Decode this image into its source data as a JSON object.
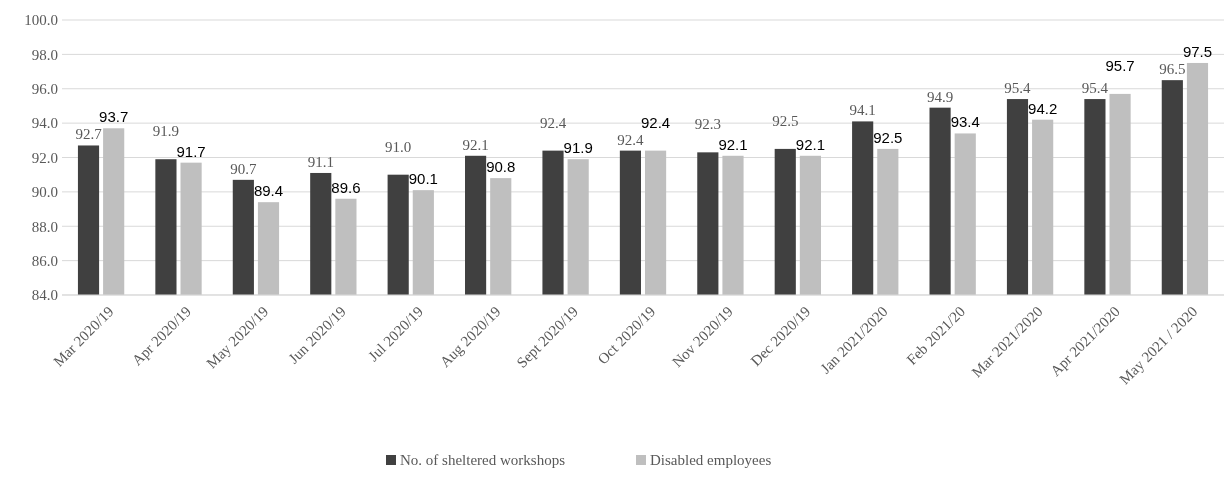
{
  "chart_data": {
    "type": "bar",
    "categories": [
      "Mar 2020/19",
      "Apr 2020/19",
      "May 2020/19",
      "Jun 2020/19",
      "Jul 2020/19",
      "Aug 2020/19",
      "Sept 2020/19",
      "Oct 2020/19",
      "Nov 2020/19",
      "Dec 2020/19",
      "Jan 2021/2020",
      "Feb 2021/20",
      "Mar 2021/2020",
      "Apr 2021/2020",
      "May 2021 / 2020"
    ],
    "series": [
      {
        "name": "No. of sheltered workshops",
        "color": "#404040",
        "values": [
          92.7,
          91.9,
          90.7,
          91.1,
          91.0,
          92.1,
          92.4,
          92.4,
          92.3,
          92.5,
          94.1,
          94.9,
          95.4,
          95.4,
          96.5
        ],
        "value_labels": [
          "92.7",
          "91.9",
          "90.7",
          "91.1",
          "91.0",
          "92.1",
          "92.4",
          "92.4",
          "92.3",
          "92.5",
          "94.1",
          "94.9",
          "95.4",
          "95.4",
          "96.5"
        ]
      },
      {
        "name": "Disabled employees",
        "color": "#bfbfbf",
        "values": [
          93.7,
          91.7,
          89.4,
          89.6,
          90.1,
          90.8,
          91.9,
          92.4,
          92.1,
          92.1,
          92.5,
          93.4,
          94.2,
          95.7,
          97.5
        ],
        "value_labels": [
          "93.7",
          "91.7",
          "89.4",
          "89.6",
          "90.1",
          "90.8",
          "91.9",
          "92.4",
          "92.1",
          "92.1",
          "92.5",
          "93.4",
          "94.2",
          "95.7",
          "97.5"
        ]
      }
    ],
    "ylim": [
      84,
      100
    ],
    "yticks": [
      {
        "value": 84,
        "label": "84.0"
      },
      {
        "value": 86,
        "label": "86.0"
      },
      {
        "value": 88,
        "label": "88.0"
      },
      {
        "value": 90,
        "label": "90.0"
      },
      {
        "value": 92,
        "label": "92.0"
      },
      {
        "value": 94,
        "label": "94.0"
      },
      {
        "value": 96,
        "label": "96.0"
      },
      {
        "value": 98,
        "label": "98.0"
      },
      {
        "value": 100,
        "label": "100.0"
      }
    ],
    "grid": "y",
    "legend": "bottom"
  }
}
